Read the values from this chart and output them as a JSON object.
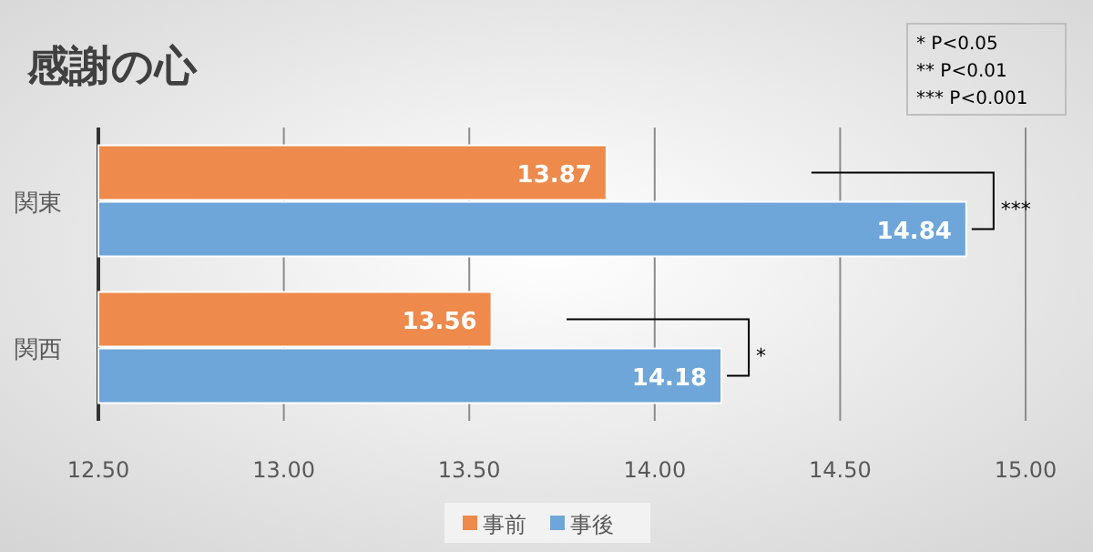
{
  "chart_data": {
    "type": "bar",
    "orientation": "horizontal",
    "title": "感謝の心",
    "categories": [
      "関東",
      "関西"
    ],
    "series": [
      {
        "name": "事前",
        "color": "#ed8a4c",
        "values": [
          13.87,
          13.56
        ]
      },
      {
        "name": "事後",
        "color": "#6fa6d9",
        "values": [
          14.84,
          14.18
        ]
      }
    ],
    "xlim": [
      12.5,
      15.0
    ],
    "xticks": [
      {
        "value": 12.5,
        "label": "12.50"
      },
      {
        "value": 13,
        "label": "13.00"
      },
      {
        "value": 13.5,
        "label": "13.50"
      },
      {
        "value": 14,
        "label": "14.00"
      },
      {
        "value": 14.5,
        "label": "14.50"
      },
      {
        "value": 15,
        "label": "15.00"
      }
    ],
    "grid": "x",
    "legend": "bottom",
    "data_labels": true,
    "annotations": [
      "* P<0.05",
      "** P<0.01",
      "*** P<0.001",
      "***",
      "*"
    ]
  }
}
